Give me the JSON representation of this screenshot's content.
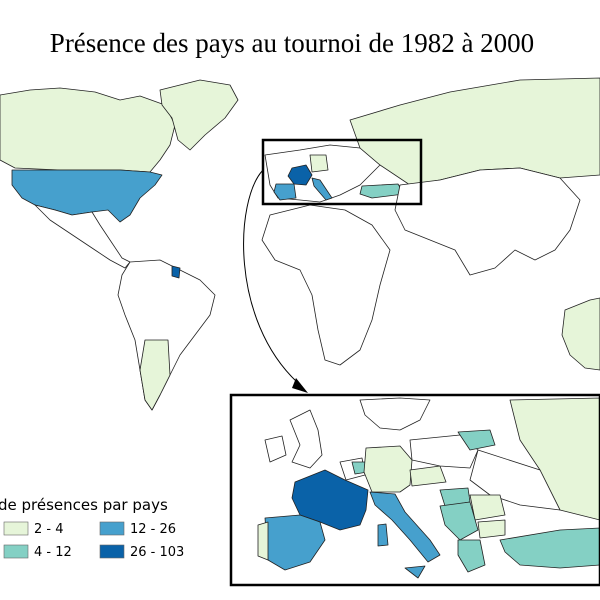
{
  "title": "Présence des pays au tournoi de 1982 à 2000",
  "legend": {
    "title": "de présences par pays",
    "items": [
      {
        "label": "2 - 4",
        "color": "#e6f5d9"
      },
      {
        "label": "4 - 12",
        "color": "#84d0c4"
      },
      {
        "label": "12 - 26",
        "color": "#46a0cd"
      },
      {
        "label": "26 - 103",
        "color": "#0a62a8"
      }
    ]
  }
}
